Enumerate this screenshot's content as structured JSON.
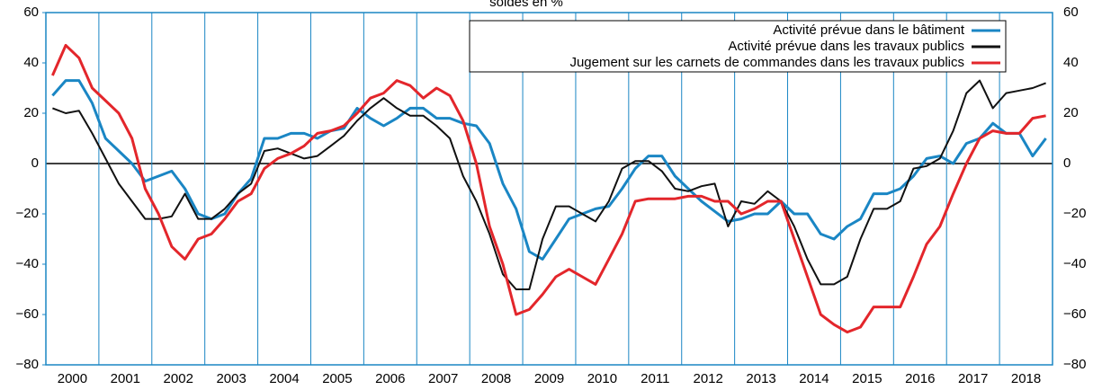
{
  "chart_data": {
    "type": "line",
    "title": "soldes en %",
    "x": [
      2000.125,
      2000.375,
      2000.625,
      2000.875,
      2001.125,
      2001.375,
      2001.625,
      2001.875,
      2002.125,
      2002.375,
      2002.625,
      2002.875,
      2003.125,
      2003.375,
      2003.625,
      2003.875,
      2004.125,
      2004.375,
      2004.625,
      2004.875,
      2005.125,
      2005.375,
      2005.625,
      2005.875,
      2006.125,
      2006.375,
      2006.625,
      2006.875,
      2007.125,
      2007.375,
      2007.625,
      2007.875,
      2008.125,
      2008.375,
      2008.625,
      2008.875,
      2009.125,
      2009.375,
      2009.625,
      2009.875,
      2010.125,
      2010.375,
      2010.625,
      2010.875,
      2011.125,
      2011.375,
      2011.625,
      2011.875,
      2012.125,
      2012.375,
      2012.625,
      2012.875,
      2013.125,
      2013.375,
      2013.625,
      2013.875,
      2014.125,
      2014.375,
      2014.625,
      2014.875,
      2015.125,
      2015.375,
      2015.625,
      2015.875,
      2016.125,
      2016.375,
      2016.625,
      2016.875,
      2017.125,
      2017.375,
      2017.625,
      2017.875,
      2018.125,
      2018.375,
      2018.625,
      2018.875
    ],
    "series": [
      {
        "name": "Activité prévue dans le bâtiment",
        "color": "#1a86c4",
        "values": [
          27,
          33,
          33,
          24,
          10,
          5,
          0,
          -7,
          -5,
          -3,
          -10,
          -20,
          -22,
          -20,
          -12,
          -6,
          10,
          10,
          12,
          12,
          10,
          13,
          14,
          22,
          18,
          15,
          18,
          22,
          22,
          18,
          18,
          16,
          15,
          8,
          -8,
          -18,
          -35,
          -38,
          -30,
          -22,
          -20,
          -18,
          -17,
          -10,
          -2,
          3,
          3,
          -5,
          -10,
          -15,
          -19,
          -23,
          -22,
          -20,
          -20,
          -15,
          -20,
          -20,
          -28,
          -30,
          -25,
          -22,
          -12,
          -12,
          -10,
          -5,
          2,
          3,
          0,
          8,
          10,
          16,
          12,
          12,
          3,
          10
        ]
      },
      {
        "name": "Activité prévue dans les travaux publics",
        "color": "#111111",
        "values": [
          22,
          20,
          21,
          12,
          2,
          -8,
          -15,
          -22,
          -22,
          -21,
          -12,
          -22,
          -22,
          -18,
          -12,
          -8,
          5,
          6,
          4,
          2,
          3,
          7,
          11,
          17,
          22,
          26,
          22,
          19,
          19,
          15,
          10,
          -5,
          -15,
          -28,
          -44,
          -50,
          -50,
          -30,
          -17,
          -17,
          -20,
          -23,
          -15,
          -2,
          1,
          1,
          -3,
          -10,
          -11,
          -9,
          -8,
          -25,
          -15,
          -16,
          -11,
          -15,
          -25,
          -38,
          -48,
          -48,
          -45,
          -30,
          -18,
          -18,
          -15,
          -2,
          -1,
          2,
          13,
          28,
          33,
          22,
          28,
          29,
          30,
          32
        ]
      },
      {
        "name": "Jugement sur les carnets de commandes dans les travaux publics",
        "color": "#e3262b",
        "values": [
          35,
          47,
          42,
          30,
          25,
          20,
          10,
          -10,
          -20,
          -33,
          -38,
          -30,
          -28,
          -22,
          -15,
          -12,
          -2,
          2,
          4,
          7,
          12,
          13,
          15,
          20,
          26,
          28,
          33,
          31,
          26,
          30,
          27,
          17,
          0,
          -25,
          -40,
          -60,
          -58,
          -52,
          -45,
          -42,
          -45,
          -48,
          -38,
          -28,
          -15,
          -14,
          -14,
          -14,
          -13,
          -13,
          -15,
          -15,
          -20,
          -18,
          -15,
          -15,
          -30,
          -45,
          -60,
          -64,
          -67,
          -65,
          -57,
          -57,
          -57,
          -45,
          -32,
          -25,
          -12,
          0,
          10,
          13,
          12,
          12,
          18,
          19
        ]
      }
    ],
    "xlim": [
      2000,
      2019
    ],
    "xticks": [
      {
        "value": 2000.5,
        "label": "2000"
      },
      {
        "value": 2001.5,
        "label": "2001"
      },
      {
        "value": 2002.5,
        "label": "2002"
      },
      {
        "value": 2003.5,
        "label": "2003"
      },
      {
        "value": 2004.5,
        "label": "2004"
      },
      {
        "value": 2005.5,
        "label": "2005"
      },
      {
        "value": 2006.5,
        "label": "2006"
      },
      {
        "value": 2007.5,
        "label": "2007"
      },
      {
        "value": 2008.5,
        "label": "2008"
      },
      {
        "value": 2009.5,
        "label": "2009"
      },
      {
        "value": 2010.5,
        "label": "2010"
      },
      {
        "value": 2011.5,
        "label": "2011"
      },
      {
        "value": 2012.5,
        "label": "2012"
      },
      {
        "value": 2013.5,
        "label": "2013"
      },
      {
        "value": 2014.5,
        "label": "2014"
      },
      {
        "value": 2015.5,
        "label": "2015"
      },
      {
        "value": 2016.5,
        "label": "2016"
      },
      {
        "value": 2017.5,
        "label": "2017"
      },
      {
        "value": 2018.5,
        "label": "2018"
      }
    ],
    "ylim": [
      -80,
      60
    ],
    "yticks": [
      {
        "value": -80,
        "label": "−80"
      },
      {
        "value": -60,
        "label": "−60"
      },
      {
        "value": -40,
        "label": "−40"
      },
      {
        "value": -20,
        "label": "−20"
      },
      0,
      20,
      40,
      60
    ],
    "grid": true,
    "legend": "top-right"
  }
}
